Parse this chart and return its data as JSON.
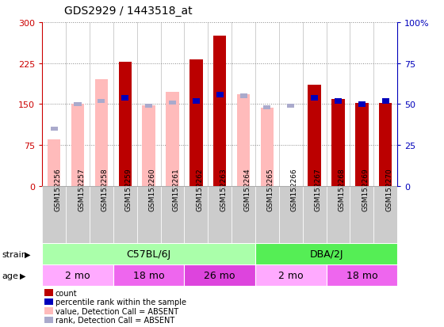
{
  "title": "GDS2929 / 1443518_at",
  "samples": [
    "GSM152256",
    "GSM152257",
    "GSM152258",
    "GSM152259",
    "GSM152260",
    "GSM152261",
    "GSM152262",
    "GSM152263",
    "GSM152264",
    "GSM152265",
    "GSM152266",
    "GSM152267",
    "GSM152268",
    "GSM152269",
    "GSM152270"
  ],
  "count_values": [
    null,
    null,
    null,
    228,
    null,
    null,
    232,
    275,
    null,
    null,
    null,
    185,
    160,
    152,
    152
  ],
  "count_absent": [
    85,
    150,
    195,
    null,
    148,
    172,
    null,
    null,
    168,
    143,
    null,
    null,
    null,
    null,
    null
  ],
  "rank_values": [
    null,
    null,
    null,
    54,
    null,
    null,
    52,
    56,
    null,
    null,
    null,
    54,
    52,
    50,
    52
  ],
  "rank_absent": [
    35,
    null,
    null,
    null,
    null,
    null,
    null,
    null,
    null,
    null,
    49,
    null,
    null,
    null,
    null
  ],
  "rank_absent_val": [
    null,
    50,
    52,
    null,
    49,
    51,
    null,
    null,
    55,
    48,
    null,
    null,
    null,
    null,
    null
  ],
  "ylim_left": [
    0,
    300
  ],
  "ylim_right": [
    0,
    100
  ],
  "yticks_left": [
    0,
    75,
    150,
    225,
    300
  ],
  "yticks_right": [
    0,
    25,
    50,
    75,
    100
  ],
  "left_axis_color": "#cc0000",
  "right_axis_color": "#0000bb",
  "count_color": "#bb0000",
  "count_absent_color": "#ffbbbb",
  "rank_color": "#0000bb",
  "rank_absent_color": "#aaaacc",
  "strain_groups": [
    {
      "label": "C57BL/6J",
      "start": 0,
      "end": 8
    },
    {
      "label": "DBA/2J",
      "start": 9,
      "end": 14
    }
  ],
  "strain_colors": {
    "C57BL/6J": "#aaffaa",
    "DBA/2J": "#55ee55"
  },
  "age_groups": [
    {
      "label": "2 mo",
      "start": 0,
      "end": 2
    },
    {
      "label": "18 mo",
      "start": 3,
      "end": 5
    },
    {
      "label": "26 mo",
      "start": 6,
      "end": 8
    },
    {
      "label": "2 mo",
      "start": 9,
      "end": 11
    },
    {
      "label": "18 mo",
      "start": 12,
      "end": 14
    }
  ],
  "age_colors": {
    "2 mo": "#ffaaff",
    "18 mo": "#ee66ee",
    "26 mo": "#dd44dd"
  },
  "legend_labels": [
    "count",
    "percentile rank within the sample",
    "value, Detection Call = ABSENT",
    "rank, Detection Call = ABSENT"
  ],
  "legend_colors": [
    "#bb0000",
    "#0000bb",
    "#ffbbbb",
    "#aaaacc"
  ],
  "grid_color": "#888888",
  "bg_color": "#ffffff",
  "tick_label_bg": "#cccccc",
  "separator_color": "#999999"
}
